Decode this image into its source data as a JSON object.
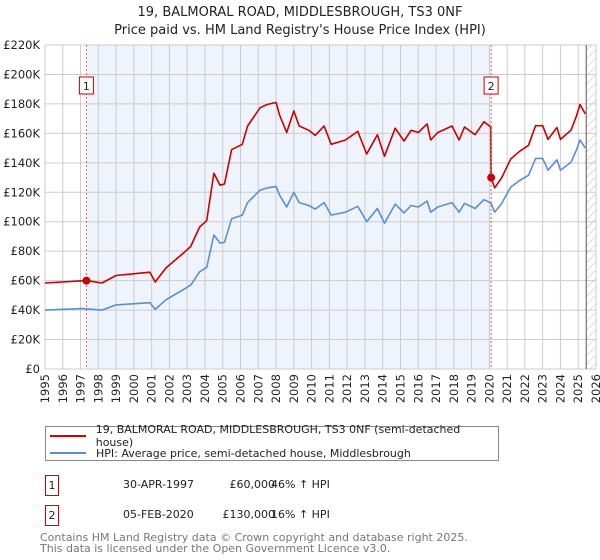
{
  "title": "19, BALMORAL ROAD, MIDDLESBROUGH, TS3 0NF",
  "subtitle": "Price paid vs. HM Land Registry's House Price Index (HPI)",
  "chart_data": {
    "type": "line",
    "title": "19, BALMORAL ROAD, MIDDLESBROUGH, TS3 0NF",
    "subtitle": "Price paid vs. HM Land Registry's House Price Index (HPI)",
    "xlabel": "",
    "ylabel": "",
    "xlim": [
      1995,
      2026
    ],
    "ylim": [
      0,
      220000
    ],
    "grid": true,
    "y_ticks": [
      0,
      20000,
      40000,
      60000,
      80000,
      100000,
      120000,
      140000,
      160000,
      180000,
      200000,
      220000
    ],
    "y_tick_labels": [
      "£0",
      "£20K",
      "£40K",
      "£60K",
      "£80K",
      "£100K",
      "£120K",
      "£140K",
      "£160K",
      "£180K",
      "£200K",
      "£220K"
    ],
    "x_ticks": [
      "1995",
      "1996",
      "1997",
      "1998",
      "1999",
      "2000",
      "2001",
      "2002",
      "2003",
      "2004",
      "2005",
      "2006",
      "2007",
      "2008",
      "2009",
      "2010",
      "2011",
      "2012",
      "2013",
      "2014",
      "2015",
      "2016",
      "2017",
      "2018",
      "2019",
      "2020",
      "2021",
      "2022",
      "2023",
      "2024",
      "2025",
      "2026"
    ],
    "shaded_span": [
      1997.33,
      2020.1
    ],
    "forecast_hatch_from": 2025.45,
    "colors": {
      "property": "#cc0000",
      "hpi": "#5b8fd4",
      "shade": "#eef3fc",
      "grid": "#cccccc"
    },
    "series": [
      {
        "name": "19, BALMORAL ROAD, MIDDLESBROUGH, TS3 0NF (semi-detached house)",
        "color": "#cc0000",
        "points": [
          [
            1995.0,
            58400
          ],
          [
            1997.1,
            59900
          ],
          [
            1997.33,
            60000
          ],
          [
            1998.2,
            58400
          ],
          [
            1999.0,
            63500
          ],
          [
            2000.9,
            65700
          ],
          [
            2001.2,
            59100
          ],
          [
            2001.8,
            68600
          ],
          [
            2002.8,
            78800
          ],
          [
            2003.2,
            83200
          ],
          [
            2003.7,
            96400
          ],
          [
            2004.1,
            100700
          ],
          [
            2004.5,
            132900
          ],
          [
            2004.85,
            124800
          ],
          [
            2005.1,
            125600
          ],
          [
            2005.5,
            148900
          ],
          [
            2006.1,
            152600
          ],
          [
            2006.4,
            165000
          ],
          [
            2007.1,
            177400
          ],
          [
            2007.5,
            179600
          ],
          [
            2008.0,
            181000
          ],
          [
            2008.2,
            172300
          ],
          [
            2008.6,
            160600
          ],
          [
            2009.0,
            175200
          ],
          [
            2009.3,
            165000
          ],
          [
            2009.85,
            162100
          ],
          [
            2010.2,
            158600
          ],
          [
            2010.7,
            165000
          ],
          [
            2011.1,
            152600
          ],
          [
            2011.9,
            155500
          ],
          [
            2012.6,
            161300
          ],
          [
            2013.1,
            146000
          ],
          [
            2013.7,
            159100
          ],
          [
            2014.1,
            144500
          ],
          [
            2014.7,
            163500
          ],
          [
            2015.2,
            154800
          ],
          [
            2015.6,
            162100
          ],
          [
            2016.0,
            160600
          ],
          [
            2016.5,
            166400
          ],
          [
            2016.7,
            155500
          ],
          [
            2017.1,
            160600
          ],
          [
            2017.9,
            165000
          ],
          [
            2018.3,
            155500
          ],
          [
            2018.6,
            164300
          ],
          [
            2019.2,
            159100
          ],
          [
            2019.7,
            167900
          ],
          [
            2020.08,
            164300
          ],
          [
            2020.1,
            130000
          ],
          [
            2020.3,
            123000
          ],
          [
            2020.7,
            130000
          ],
          [
            2021.2,
            142600
          ],
          [
            2021.7,
            147800
          ],
          [
            2022.2,
            151900
          ],
          [
            2022.6,
            165200
          ],
          [
            2023.0,
            165200
          ],
          [
            2023.3,
            155900
          ],
          [
            2023.8,
            164000
          ],
          [
            2024.0,
            155900
          ],
          [
            2024.6,
            162300
          ],
          [
            2024.9,
            171700
          ],
          [
            2025.1,
            179600
          ],
          [
            2025.4,
            173300
          ]
        ]
      },
      {
        "name": "HPI: Average price, semi-detached house, Middlesbrough",
        "color": "#5b8fd4",
        "points": [
          [
            1995.0,
            40000
          ],
          [
            1997.1,
            41000
          ],
          [
            1998.2,
            40000
          ],
          [
            1999.0,
            43500
          ],
          [
            2000.9,
            45000
          ],
          [
            2001.2,
            40500
          ],
          [
            2001.8,
            47000
          ],
          [
            2002.8,
            54000
          ],
          [
            2003.2,
            57000
          ],
          [
            2003.7,
            66000
          ],
          [
            2004.1,
            69000
          ],
          [
            2004.5,
            91000
          ],
          [
            2004.85,
            85500
          ],
          [
            2005.1,
            86000
          ],
          [
            2005.5,
            102000
          ],
          [
            2006.1,
            104500
          ],
          [
            2006.4,
            113000
          ],
          [
            2007.1,
            121500
          ],
          [
            2007.5,
            123000
          ],
          [
            2008.0,
            124000
          ],
          [
            2008.2,
            118000
          ],
          [
            2008.6,
            110000
          ],
          [
            2009.0,
            120000
          ],
          [
            2009.3,
            113000
          ],
          [
            2009.85,
            111000
          ],
          [
            2010.2,
            108600
          ],
          [
            2010.7,
            113000
          ],
          [
            2011.1,
            104500
          ],
          [
            2011.9,
            106500
          ],
          [
            2012.6,
            110500
          ],
          [
            2013.1,
            100000
          ],
          [
            2013.7,
            109000
          ],
          [
            2014.1,
            99000
          ],
          [
            2014.7,
            112000
          ],
          [
            2015.2,
            106000
          ],
          [
            2015.6,
            111000
          ],
          [
            2016.0,
            110000
          ],
          [
            2016.5,
            114000
          ],
          [
            2016.7,
            106500
          ],
          [
            2017.1,
            110000
          ],
          [
            2017.9,
            113000
          ],
          [
            2018.3,
            106500
          ],
          [
            2018.6,
            112500
          ],
          [
            2019.2,
            109000
          ],
          [
            2019.7,
            115000
          ],
          [
            2020.1,
            112500
          ],
          [
            2020.3,
            106500
          ],
          [
            2020.7,
            112500
          ],
          [
            2021.2,
            123500
          ],
          [
            2021.7,
            128000
          ],
          [
            2022.2,
            131500
          ],
          [
            2022.6,
            143000
          ],
          [
            2023.0,
            143000
          ],
          [
            2023.3,
            135000
          ],
          [
            2023.8,
            142000
          ],
          [
            2024.0,
            135000
          ],
          [
            2024.6,
            140500
          ],
          [
            2024.9,
            148700
          ],
          [
            2025.1,
            155500
          ],
          [
            2025.4,
            150000
          ]
        ]
      }
    ],
    "annotations": [
      {
        "label": "1",
        "x": 1997.33,
        "y": 60000
      },
      {
        "label": "2",
        "x": 2020.1,
        "y": 130000
      }
    ]
  },
  "legend": {
    "property": "19, BALMORAL ROAD, MIDDLESBROUGH, TS3 0NF (semi-detached house)",
    "hpi": "HPI: Average price, semi-detached house, Middlesbrough"
  },
  "transactions": [
    {
      "num": "1",
      "date": "30-APR-1997",
      "price": "£60,000",
      "hpi": "46% ↑ HPI"
    },
    {
      "num": "2",
      "date": "05-FEB-2020",
      "price": "£130,000",
      "hpi": "16% ↑ HPI"
    }
  ],
  "footer": {
    "line1": "Contains HM Land Registry data © Crown copyright and database right 2025.",
    "line2": "This data is licensed under the Open Government Licence v3.0."
  }
}
